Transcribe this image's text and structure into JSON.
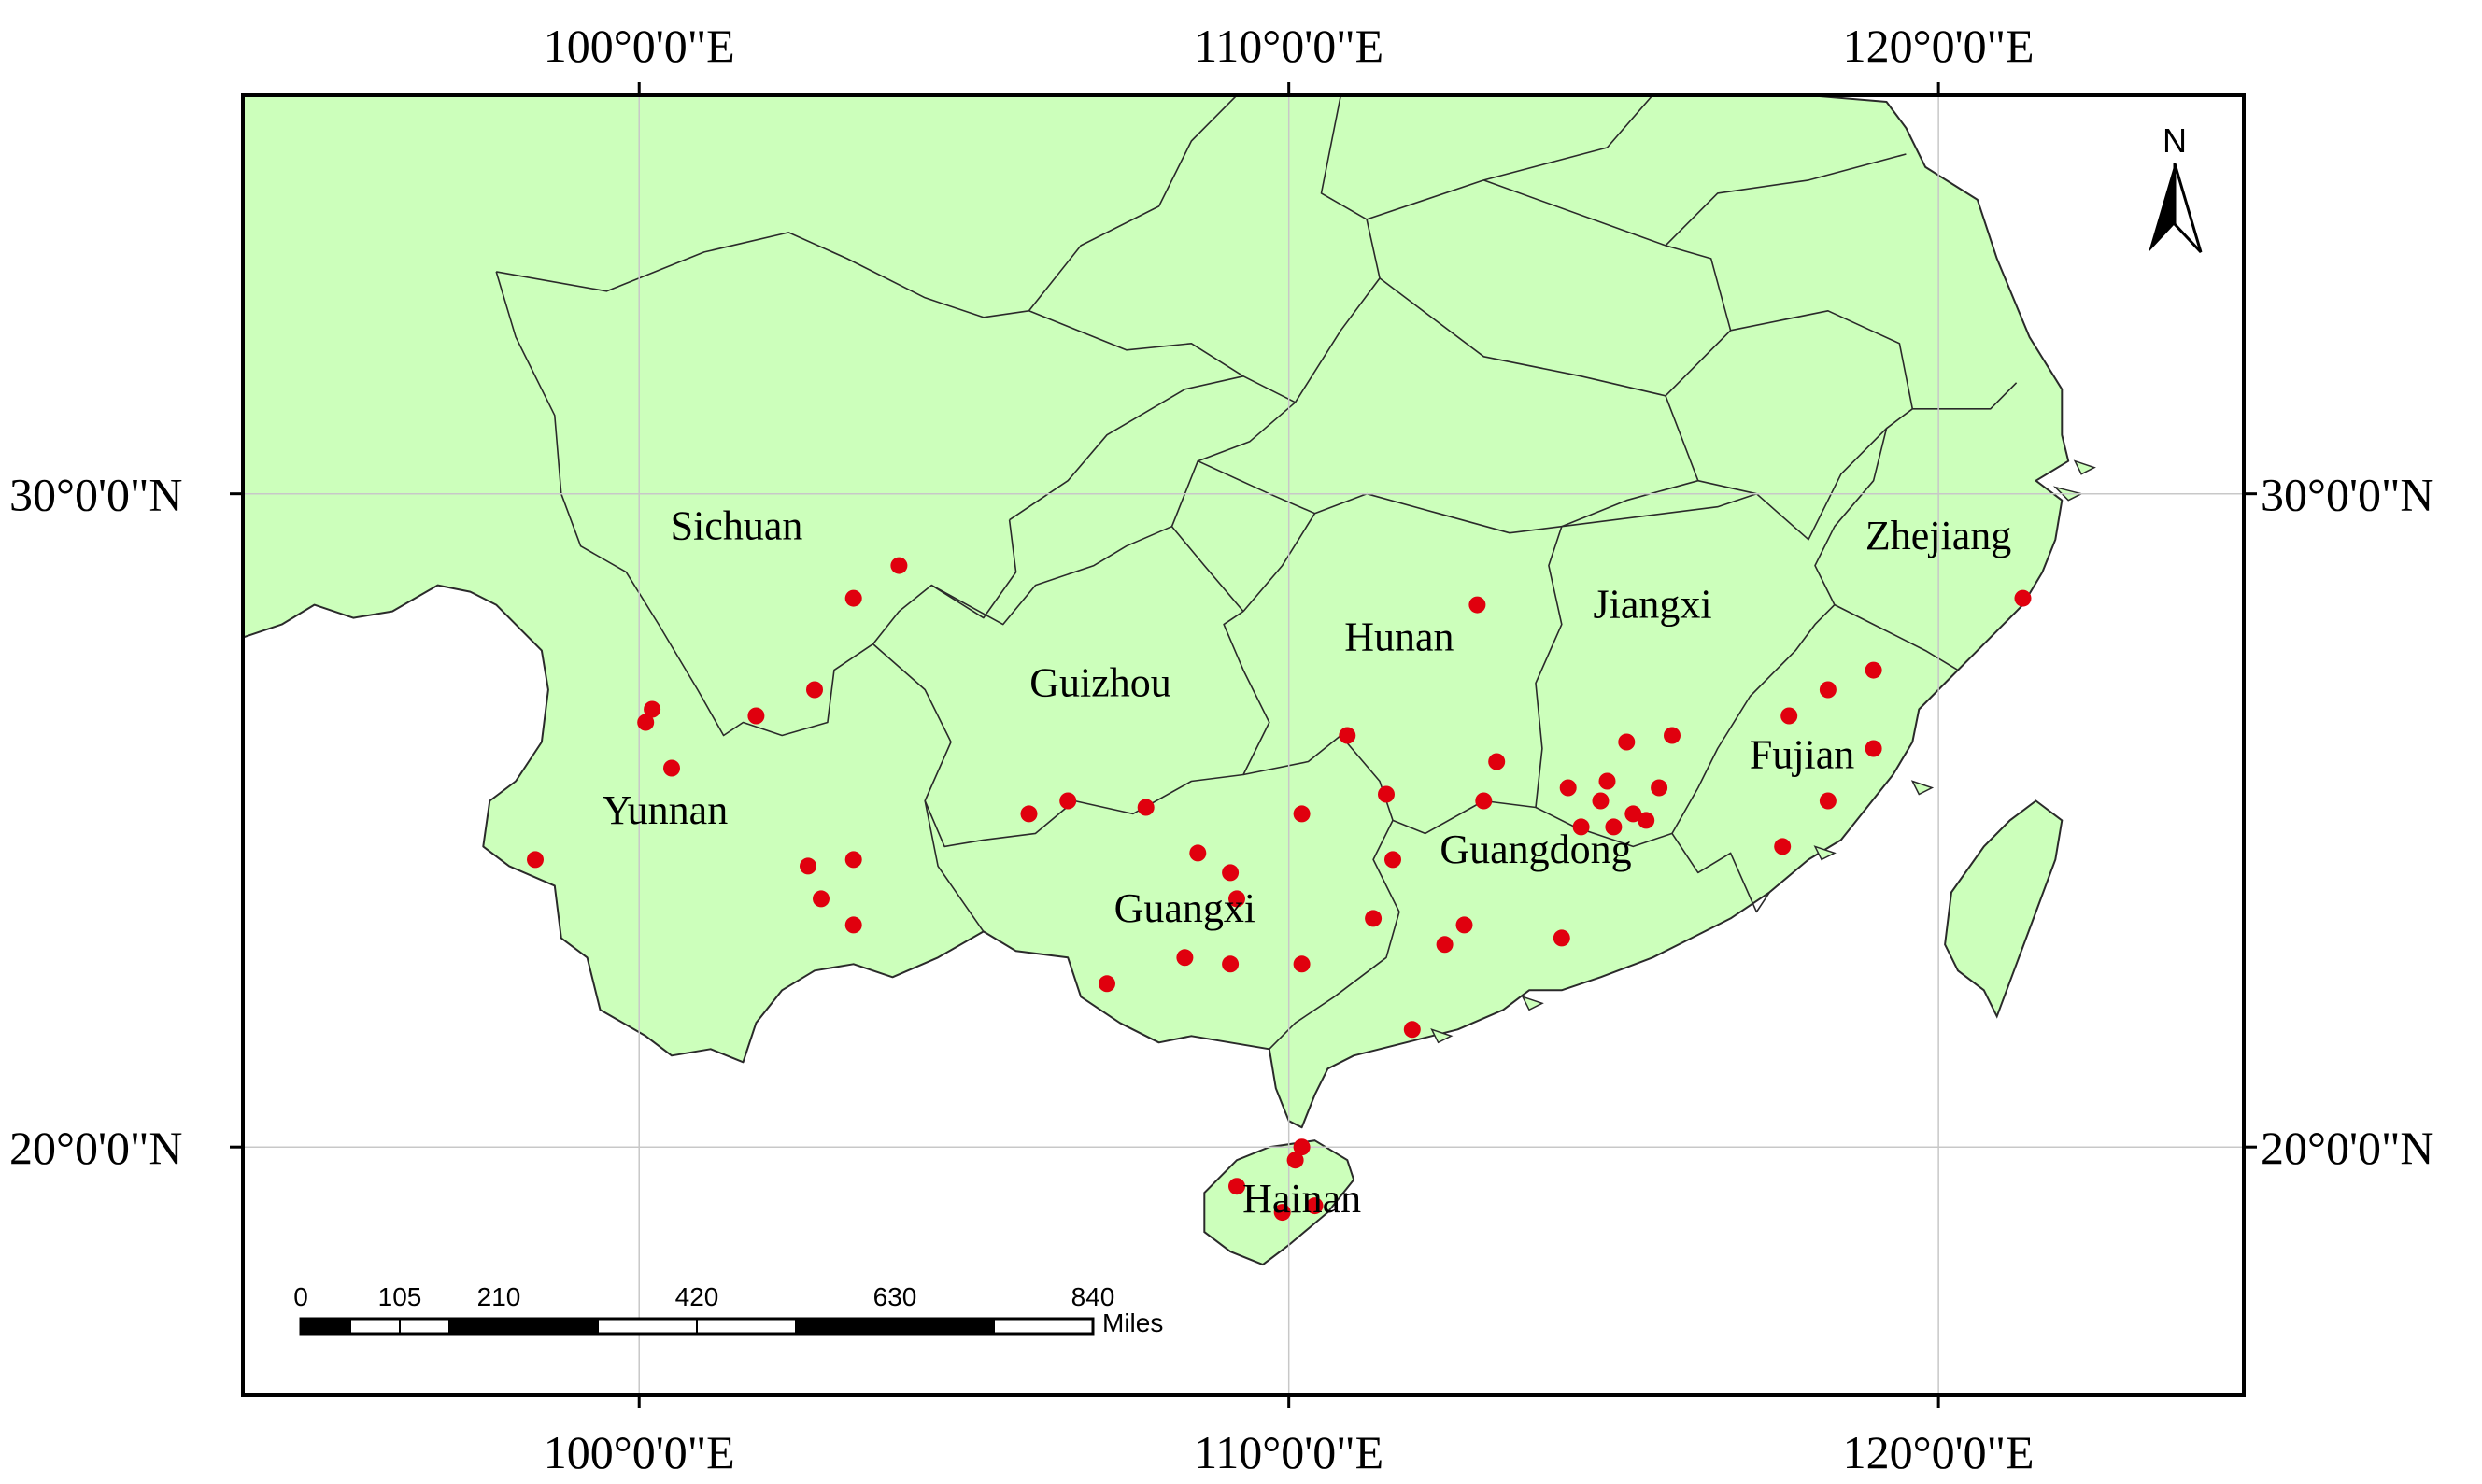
{
  "grid": {
    "longitudes": [
      {
        "value": 100,
        "label": "100°0'0\"E"
      },
      {
        "value": 110,
        "label": "110°0'0\"E"
      },
      {
        "value": 120,
        "label": "120°0'0\"E"
      }
    ],
    "latitudes": [
      {
        "value": 30,
        "label": "30°0'0\"N"
      },
      {
        "value": 20,
        "label": "20°0'0\"N"
      }
    ]
  },
  "extent": {
    "lon": [
      93.9,
      124.7
    ],
    "lat": [
      16.2,
      36.1
    ]
  },
  "colors": {
    "land": "#ccffbb",
    "border": "#2a2a2a",
    "point": "#e0000e",
    "graticule": "#c8c8c8",
    "frame": "#000000"
  },
  "north_arrow": {
    "label": "N"
  },
  "scale_bar": {
    "unit": "Miles",
    "ticks": [
      "0",
      "105",
      "210",
      "420",
      "630",
      "840"
    ],
    "tick_values": [
      0,
      105,
      210,
      420,
      630,
      840
    ]
  },
  "provinces": [
    {
      "name": "Sichuan",
      "lon": 101.5,
      "lat": 29.3
    },
    {
      "name": "Yunnan",
      "lon": 100.4,
      "lat": 24.95
    },
    {
      "name": "Guizhou",
      "lon": 107.1,
      "lat": 26.9
    },
    {
      "name": "Hunan",
      "lon": 111.7,
      "lat": 27.6
    },
    {
      "name": "Jiangxi",
      "lon": 115.6,
      "lat": 28.1
    },
    {
      "name": "Fujian",
      "lon": 117.9,
      "lat": 25.8
    },
    {
      "name": "Zhejiang",
      "lon": 120,
      "lat": 29.15
    },
    {
      "name": "Guangxi",
      "lon": 108.4,
      "lat": 23.45
    },
    {
      "name": "Guangdong",
      "lon": 113.8,
      "lat": 24.35
    },
    {
      "name": "Hainan",
      "lon": 110.2,
      "lat": 19.0
    }
  ],
  "sample_points": [
    {
      "lon": 98.4,
      "lat": 24.4
    },
    {
      "lon": 100.1,
      "lat": 26.5
    },
    {
      "lon": 100.2,
      "lat": 26.7
    },
    {
      "lon": 100.5,
      "lat": 25.8
    },
    {
      "lon": 101.8,
      "lat": 26.6
    },
    {
      "lon": 102.7,
      "lat": 27.0
    },
    {
      "lon": 103.3,
      "lat": 28.4
    },
    {
      "lon": 104.0,
      "lat": 28.9
    },
    {
      "lon": 102.6,
      "lat": 24.3
    },
    {
      "lon": 102.8,
      "lat": 23.8
    },
    {
      "lon": 103.3,
      "lat": 24.4
    },
    {
      "lon": 103.3,
      "lat": 23.4
    },
    {
      "lon": 106.0,
      "lat": 25.1
    },
    {
      "lon": 106.6,
      "lat": 25.3
    },
    {
      "lon": 107.8,
      "lat": 25.2
    },
    {
      "lon": 108.6,
      "lat": 24.5
    },
    {
      "lon": 109.1,
      "lat": 24.2
    },
    {
      "lon": 109.2,
      "lat": 23.8
    },
    {
      "lon": 108.4,
      "lat": 22.9
    },
    {
      "lon": 109.1,
      "lat": 22.8
    },
    {
      "lon": 110.2,
      "lat": 22.8
    },
    {
      "lon": 107.2,
      "lat": 22.5
    },
    {
      "lon": 110.2,
      "lat": 25.1
    },
    {
      "lon": 110.9,
      "lat": 26.3
    },
    {
      "lon": 111.5,
      "lat": 25.4
    },
    {
      "lon": 111.6,
      "lat": 24.4
    },
    {
      "lon": 111.3,
      "lat": 23.5
    },
    {
      "lon": 112.9,
      "lat": 28.3
    },
    {
      "lon": 113.2,
      "lat": 25.9
    },
    {
      "lon": 113.0,
      "lat": 25.3
    },
    {
      "lon": 112.4,
      "lat": 23.1
    },
    {
      "lon": 112.7,
      "lat": 23.4
    },
    {
      "lon": 111.9,
      "lat": 21.8
    },
    {
      "lon": 114.2,
      "lat": 23.2
    },
    {
      "lon": 114.3,
      "lat": 25.5
    },
    {
      "lon": 114.5,
      "lat": 24.9
    },
    {
      "lon": 114.8,
      "lat": 25.3
    },
    {
      "lon": 114.9,
      "lat": 25.6
    },
    {
      "lon": 115.0,
      "lat": 24.9
    },
    {
      "lon": 115.2,
      "lat": 26.2
    },
    {
      "lon": 115.3,
      "lat": 25.1
    },
    {
      "lon": 115.5,
      "lat": 25.0
    },
    {
      "lon": 115.7,
      "lat": 25.5
    },
    {
      "lon": 115.9,
      "lat": 26.3
    },
    {
      "lon": 117.7,
      "lat": 26.6
    },
    {
      "lon": 117.6,
      "lat": 24.6
    },
    {
      "lon": 118.3,
      "lat": 27.0
    },
    {
      "lon": 118.3,
      "lat": 25.3
    },
    {
      "lon": 119.0,
      "lat": 27.3
    },
    {
      "lon": 119.0,
      "lat": 26.1
    },
    {
      "lon": 121.3,
      "lat": 28.4
    },
    {
      "lon": 110.2,
      "lat": 20.0
    },
    {
      "lon": 110.1,
      "lat": 19.8
    },
    {
      "lon": 109.2,
      "lat": 19.4
    },
    {
      "lon": 109.9,
      "lat": 19.0
    },
    {
      "lon": 110.4,
      "lat": 19.1
    }
  ],
  "borders": {
    "mainland": [
      [
        98.0,
        36.1
      ],
      [
        102.0,
        36.1
      ],
      [
        106.0,
        36.1
      ],
      [
        110.0,
        36.1
      ],
      [
        114.0,
        36.1
      ],
      [
        118.0,
        36.1
      ],
      [
        119.2,
        36.0
      ],
      [
        119.5,
        35.6
      ],
      [
        119.8,
        35.0
      ],
      [
        120.6,
        34.5
      ],
      [
        120.9,
        33.6
      ],
      [
        121.4,
        32.4
      ],
      [
        121.9,
        31.6
      ],
      [
        121.9,
        30.9
      ],
      [
        122.0,
        30.5
      ],
      [
        121.5,
        30.2
      ],
      [
        121.9,
        29.9
      ],
      [
        121.8,
        29.3
      ],
      [
        121.6,
        28.8
      ],
      [
        121.3,
        28.3
      ],
      [
        121.0,
        28.0
      ],
      [
        120.5,
        27.5
      ],
      [
        120.1,
        27.1
      ],
      [
        119.7,
        26.7
      ],
      [
        119.6,
        26.2
      ],
      [
        119.3,
        25.7
      ],
      [
        118.9,
        25.2
      ],
      [
        118.5,
        24.7
      ],
      [
        118.0,
        24.4
      ],
      [
        117.4,
        23.9
      ],
      [
        116.8,
        23.5
      ],
      [
        116.2,
        23.2
      ],
      [
        115.6,
        22.9
      ],
      [
        114.8,
        22.6
      ],
      [
        114.2,
        22.4
      ],
      [
        113.7,
        22.4
      ],
      [
        113.3,
        22.1
      ],
      [
        112.6,
        21.8
      ],
      [
        111.8,
        21.6
      ],
      [
        111.0,
        21.4
      ],
      [
        110.6,
        21.2
      ],
      [
        110.4,
        20.8
      ],
      [
        110.2,
        20.3
      ],
      [
        110.0,
        20.4
      ],
      [
        109.8,
        20.9
      ],
      [
        109.7,
        21.5
      ],
      [
        109.1,
        21.6
      ],
      [
        108.5,
        21.7
      ],
      [
        108.0,
        21.6
      ],
      [
        107.4,
        21.9
      ],
      [
        106.8,
        22.3
      ],
      [
        106.6,
        22.9
      ],
      [
        105.8,
        23.0
      ],
      [
        105.3,
        23.3
      ],
      [
        104.6,
        22.9
      ],
      [
        103.9,
        22.6
      ],
      [
        103.3,
        22.8
      ],
      [
        102.7,
        22.7
      ],
      [
        102.2,
        22.4
      ],
      [
        101.8,
        21.9
      ],
      [
        101.6,
        21.3
      ],
      [
        101.1,
        21.5
      ],
      [
        100.5,
        21.4
      ],
      [
        100.1,
        21.7
      ],
      [
        99.4,
        22.1
      ],
      [
        99.2,
        22.9
      ],
      [
        98.8,
        23.2
      ],
      [
        98.7,
        24.0
      ],
      [
        98.0,
        24.3
      ],
      [
        97.6,
        24.6
      ],
      [
        97.7,
        25.3
      ],
      [
        98.1,
        25.6
      ],
      [
        98.5,
        26.2
      ],
      [
        98.6,
        27.0
      ],
      [
        98.5,
        27.6
      ],
      [
        98.2,
        27.9
      ],
      [
        97.8,
        28.3
      ],
      [
        97.4,
        28.5
      ],
      [
        96.9,
        28.6
      ],
      [
        96.2,
        28.2
      ],
      [
        95.6,
        28.1
      ],
      [
        95.0,
        28.3
      ],
      [
        94.5,
        28.0
      ],
      [
        93.9,
        27.8
      ],
      [
        93.9,
        36.1
      ]
    ],
    "taiwan": [
      [
        121.5,
        25.3
      ],
      [
        121.9,
        25.0
      ],
      [
        121.8,
        24.4
      ],
      [
        121.5,
        23.6
      ],
      [
        121.2,
        22.8
      ],
      [
        120.9,
        22.0
      ],
      [
        120.7,
        22.4
      ],
      [
        120.3,
        22.7
      ],
      [
        120.1,
        23.1
      ],
      [
        120.2,
        23.9
      ],
      [
        120.7,
        24.6
      ],
      [
        121.1,
        25.0
      ]
    ],
    "hainan": [
      [
        110.4,
        20.1
      ],
      [
        110.9,
        19.8
      ],
      [
        111.0,
        19.5
      ],
      [
        110.6,
        19.0
      ],
      [
        110.0,
        18.5
      ],
      [
        109.6,
        18.2
      ],
      [
        109.1,
        18.4
      ],
      [
        108.7,
        18.7
      ],
      [
        108.7,
        19.3
      ],
      [
        109.2,
        19.8
      ],
      [
        109.7,
        20.0
      ]
    ],
    "internal": [
      [
        [
          97.8,
          33.4
        ],
        [
          99.5,
          33.1
        ],
        [
          101.0,
          33.7
        ],
        [
          102.3,
          34.0
        ],
        [
          103.2,
          33.6
        ],
        [
          104.4,
          33.0
        ],
        [
          105.3,
          32.7
        ],
        [
          106.0,
          32.8
        ]
      ],
      [
        [
          106.0,
          32.8
        ],
        [
          107.5,
          32.2
        ],
        [
          108.5,
          32.3
        ],
        [
          109.3,
          31.8
        ],
        [
          110.1,
          31.4
        ]
      ],
      [
        [
          106.0,
          32.8
        ],
        [
          106.8,
          33.8
        ],
        [
          108.0,
          34.4
        ],
        [
          108.5,
          35.4
        ],
        [
          109.2,
          36.1
        ]
      ],
      [
        [
          110.1,
          31.4
        ],
        [
          110.8,
          32.5
        ],
        [
          111.4,
          33.3
        ],
        [
          111.2,
          34.2
        ],
        [
          110.5,
          34.6
        ],
        [
          110.8,
          36.1
        ]
      ],
      [
        [
          111.2,
          34.2
        ],
        [
          113.0,
          34.8
        ],
        [
          114.9,
          35.3
        ],
        [
          115.6,
          36.1
        ]
      ],
      [
        [
          113.0,
          34.8
        ],
        [
          115.8,
          33.8
        ],
        [
          116.6,
          34.6
        ],
        [
          118.0,
          34.8
        ],
        [
          119.5,
          35.2
        ]
      ],
      [
        [
          111.4,
          33.3
        ],
        [
          113.0,
          32.1
        ],
        [
          114.5,
          31.8
        ],
        [
          115.8,
          31.5
        ],
        [
          116.8,
          32.5
        ],
        [
          116.5,
          33.6
        ],
        [
          115.8,
          33.8
        ]
      ],
      [
        [
          115.8,
          31.5
        ],
        [
          116.3,
          30.2
        ],
        [
          117.2,
          30.0
        ],
        [
          118.0,
          29.3
        ],
        [
          118.5,
          30.3
        ],
        [
          119.2,
          31.0
        ],
        [
          119.6,
          31.3
        ],
        [
          120.8,
          31.3
        ],
        [
          121.2,
          31.7
        ]
      ],
      [
        [
          116.8,
          32.5
        ],
        [
          118.3,
          32.8
        ],
        [
          119.4,
          32.3
        ],
        [
          119.6,
          31.3
        ]
      ],
      [
        [
          119.2,
          31.0
        ],
        [
          119.0,
          30.2
        ],
        [
          118.4,
          29.5
        ],
        [
          118.1,
          28.9
        ],
        [
          118.4,
          28.3
        ],
        [
          119.0,
          28.0
        ],
        [
          119.8,
          27.6
        ],
        [
          120.3,
          27.3
        ]
      ],
      [
        [
          105.7,
          29.6
        ],
        [
          106.6,
          30.2
        ],
        [
          107.2,
          30.9
        ],
        [
          108.4,
          31.6
        ],
        [
          109.3,
          31.8
        ]
      ],
      [
        [
          105.7,
          29.6
        ],
        [
          105.8,
          28.8
        ],
        [
          105.3,
          28.1
        ],
        [
          104.5,
          28.6
        ],
        [
          104.0,
          28.2
        ],
        [
          103.6,
          27.7
        ],
        [
          103.0,
          27.3
        ],
        [
          102.9,
          26.5
        ],
        [
          102.2,
          26.3
        ],
        [
          101.6,
          26.5
        ],
        [
          101.3,
          26.3
        ],
        [
          100.9,
          27.0
        ],
        [
          100.3,
          28.0
        ],
        [
          99.8,
          28.8
        ],
        [
          99.1,
          29.2
        ],
        [
          98.8,
          30.0
        ],
        [
          98.7,
          31.2
        ],
        [
          98.1,
          32.4
        ],
        [
          97.8,
          33.4
        ]
      ],
      [
        [
          104.5,
          28.6
        ],
        [
          105.6,
          28.0
        ],
        [
          106.1,
          28.6
        ],
        [
          107.0,
          28.9
        ],
        [
          107.5,
          29.2
        ],
        [
          108.2,
          29.5
        ],
        [
          108.7,
          28.9
        ],
        [
          109.3,
          28.2
        ]
      ],
      [
        [
          108.2,
          29.5
        ],
        [
          108.6,
          30.5
        ],
        [
          109.4,
          30.8
        ],
        [
          110.1,
          31.4
        ]
      ],
      [
        [
          108.6,
          30.5
        ],
        [
          109.7,
          30.0
        ],
        [
          110.4,
          29.7
        ],
        [
          111.2,
          30.0
        ],
        [
          112.3,
          29.7
        ],
        [
          113.4,
          29.4
        ],
        [
          114.2,
          29.5
        ],
        [
          115.2,
          29.9
        ],
        [
          116.3,
          30.2
        ]
      ],
      [
        [
          103.6,
          27.7
        ],
        [
          104.4,
          27.0
        ],
        [
          104.8,
          26.2
        ],
        [
          104.4,
          25.3
        ],
        [
          104.7,
          24.6
        ],
        [
          105.3,
          24.7
        ],
        [
          106.1,
          24.8
        ],
        [
          106.7,
          25.3
        ],
        [
          107.6,
          25.1
        ],
        [
          108.5,
          25.6
        ],
        [
          109.3,
          25.7
        ],
        [
          109.7,
          26.5
        ],
        [
          109.3,
          27.3
        ],
        [
          109.0,
          28.0
        ],
        [
          109.3,
          28.2
        ]
      ],
      [
        [
          104.4,
          25.3
        ],
        [
          104.6,
          24.3
        ],
        [
          105.3,
          23.3
        ]
      ],
      [
        [
          109.3,
          28.2
        ],
        [
          109.9,
          28.9
        ],
        [
          110.4,
          29.7
        ]
      ],
      [
        [
          109.3,
          25.7
        ],
        [
          110.3,
          25.9
        ],
        [
          110.8,
          26.3
        ],
        [
          111.4,
          25.6
        ],
        [
          111.6,
          25.0
        ],
        [
          112.1,
          24.8
        ],
        [
          113.0,
          25.3
        ],
        [
          113.8,
          25.2
        ],
        [
          114.4,
          24.9
        ],
        [
          115.3,
          24.6
        ],
        [
          115.9,
          24.8
        ],
        [
          116.3,
          24.2
        ],
        [
          116.8,
          24.5
        ],
        [
          117.2,
          23.6
        ],
        [
          117.4,
          23.9
        ]
      ],
      [
        [
          111.6,
          25.0
        ],
        [
          111.3,
          24.4
        ],
        [
          111.7,
          23.6
        ],
        [
          111.5,
          22.9
        ],
        [
          110.7,
          22.3
        ],
        [
          110.1,
          21.9
        ],
        [
          109.7,
          21.5
        ]
      ],
      [
        [
          113.8,
          25.2
        ],
        [
          113.9,
          26.1
        ],
        [
          113.8,
          27.1
        ],
        [
          114.2,
          28.0
        ],
        [
          114.0,
          28.9
        ],
        [
          114.2,
          29.5
        ]
      ],
      [
        [
          114.2,
          29.5
        ],
        [
          115.8,
          29.7
        ],
        [
          116.6,
          29.8
        ],
        [
          117.2,
          30.0
        ]
      ],
      [
        [
          115.9,
          24.8
        ],
        [
          116.3,
          25.5
        ],
        [
          116.6,
          26.1
        ],
        [
          117.1,
          26.9
        ],
        [
          117.8,
          27.6
        ],
        [
          118.1,
          28.0
        ],
        [
          118.4,
          28.3
        ]
      ]
    ],
    "islands": [
      [
        [
          112.2,
          21.8
        ],
        [
          112.5,
          21.7
        ],
        [
          112.3,
          21.6
        ]
      ],
      [
        [
          113.6,
          22.3
        ],
        [
          113.9,
          22.2
        ],
        [
          113.7,
          22.1
        ]
      ],
      [
        [
          118.1,
          24.6
        ],
        [
          118.4,
          24.5
        ],
        [
          118.2,
          24.4
        ]
      ],
      [
        [
          119.6,
          25.6
        ],
        [
          119.9,
          25.5
        ],
        [
          119.7,
          25.4
        ]
      ],
      [
        [
          121.8,
          30.1
        ],
        [
          122.2,
          30.0
        ],
        [
          122.0,
          29.9
        ]
      ],
      [
        [
          122.1,
          30.5
        ],
        [
          122.4,
          30.4
        ],
        [
          122.2,
          30.3
        ]
      ]
    ]
  }
}
